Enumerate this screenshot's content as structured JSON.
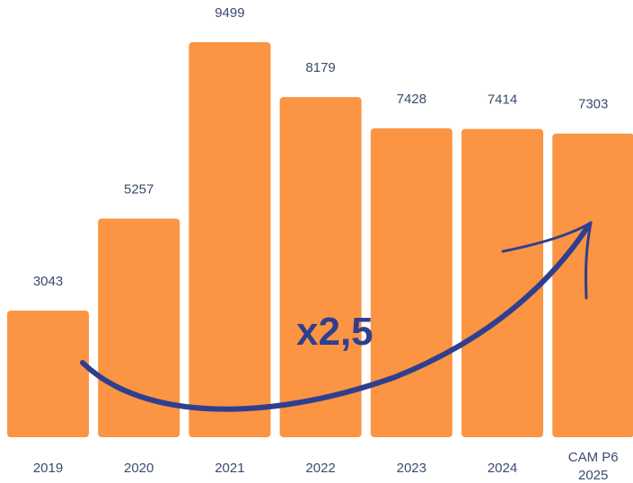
{
  "chart_data": {
    "type": "bar",
    "categories": [
      [
        "2019"
      ],
      [
        "2020"
      ],
      [
        "2021"
      ],
      [
        "2022"
      ],
      [
        "2023"
      ],
      [
        "2024"
      ],
      [
        "CAM P6",
        "2025"
      ]
    ],
    "values": [
      3043,
      5257,
      9499,
      8179,
      7428,
      7414,
      7303
    ],
    "data_labels": [
      "3043",
      "5257",
      "9499",
      "8179",
      "7428",
      "7414",
      "7303"
    ],
    "ylim": [
      0,
      10000
    ],
    "grid": false,
    "bar_color": "#fb9443",
    "label_color": "#3c4a6e",
    "annotation": {
      "text": "x2,5",
      "color": "#2f3f8f",
      "arrow": "hand-drawn curved arrow from 2019 rising to CAM P6 2025"
    }
  }
}
